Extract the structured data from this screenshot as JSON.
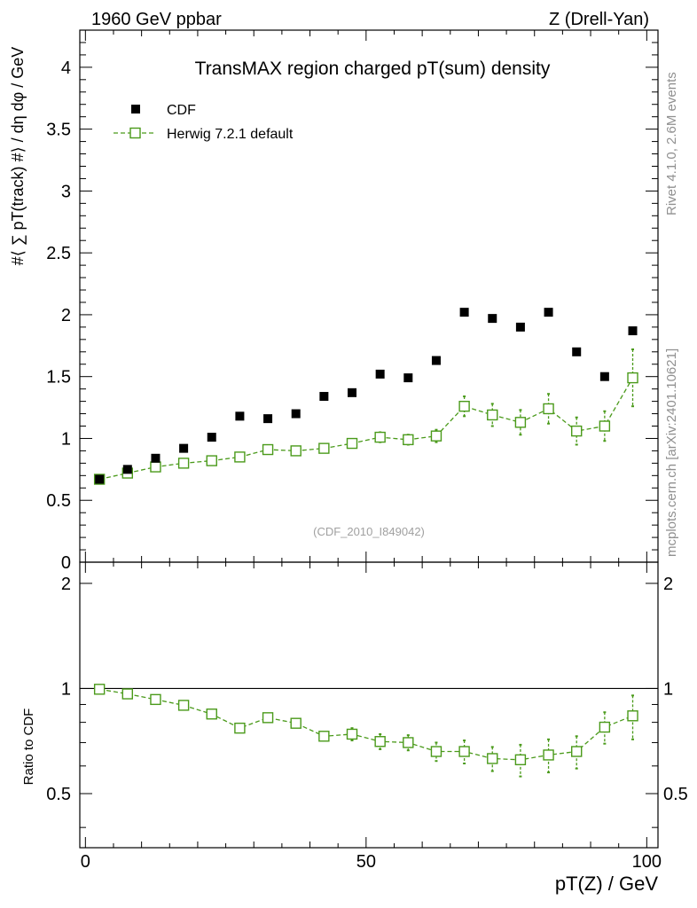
{
  "header": {
    "left": "1960 GeV ppbar",
    "right": "Z (Drell-Yan)"
  },
  "side_labels": {
    "rivet": "Rivet 4.1.0,  2.6M events",
    "mcplots": "mcplots.cern.ch [arXiv:2401.10621]"
  },
  "colors": {
    "cdf": "#000000",
    "herwig": "#4a9a1a",
    "watermark": "#a0a0a0",
    "side_text": "#909090"
  },
  "chart_data": [
    {
      "type": "scatter",
      "title": "TransMAX region charged pT(sum) density",
      "xlabel": "pT(Z) / GeV",
      "ylabel": "#⟨ ∑ pT(track) #⟩ / dη dφ / GeV",
      "xlim": [
        -1,
        102
      ],
      "ylim": [
        0,
        4.3
      ],
      "yticks": [
        0,
        0.5,
        1,
        1.5,
        2,
        2.5,
        3,
        3.5,
        4
      ],
      "ytick_labels": [
        "0",
        "0.5",
        "1",
        "1.5",
        "2",
        "2.5",
        "3",
        "3.5",
        "4"
      ],
      "watermark": "(CDF_2010_I849042)",
      "legend_position": "top-left",
      "x": [
        2.5,
        7.5,
        12.5,
        17.5,
        22.5,
        27.5,
        32.5,
        37.5,
        42.5,
        47.5,
        52.5,
        57.5,
        62.5,
        67.5,
        72.5,
        77.5,
        82.5,
        87.5,
        92.5,
        97.5
      ],
      "series": [
        {
          "name": "CDF",
          "marker": "filled-square",
          "values": [
            0.67,
            0.75,
            0.84,
            0.92,
            1.01,
            1.18,
            1.16,
            1.2,
            1.34,
            1.37,
            1.52,
            1.49,
            1.63,
            2.02,
            1.97,
            1.9,
            2.02,
            1.7,
            1.5,
            1.87
          ]
        },
        {
          "name": "Herwig 7.2.1 default",
          "marker": "open-square-dashed",
          "values": [
            0.67,
            0.72,
            0.77,
            0.8,
            0.82,
            0.85,
            0.91,
            0.9,
            0.92,
            0.96,
            1.01,
            0.99,
            1.02,
            1.26,
            1.19,
            1.13,
            1.24,
            1.06,
            1.1,
            1.49
          ],
          "errors": [
            0.01,
            0.01,
            0.01,
            0.02,
            0.02,
            0.02,
            0.02,
            0.02,
            0.02,
            0.03,
            0.04,
            0.04,
            0.05,
            0.08,
            0.09,
            0.1,
            0.12,
            0.11,
            0.12,
            0.23
          ]
        }
      ]
    },
    {
      "type": "scatter",
      "xlabel": "pT(Z) / GeV",
      "ylabel": "Ratio to CDF",
      "xlim": [
        -1,
        102
      ],
      "ylim": [
        0.35,
        2.3
      ],
      "yticks": [
        0.5,
        1,
        2
      ],
      "ytick_labels": [
        "0.5",
        "1",
        "2"
      ],
      "xticks": [
        0,
        50,
        100
      ],
      "xtick_labels": [
        "0",
        "50",
        "100"
      ],
      "reference_line": 1,
      "x": [
        2.5,
        7.5,
        12.5,
        17.5,
        22.5,
        27.5,
        32.5,
        37.5,
        42.5,
        47.5,
        52.5,
        57.5,
        62.5,
        67.5,
        72.5,
        77.5,
        82.5,
        87.5,
        92.5,
        97.5
      ],
      "series": [
        {
          "name": "Herwig 7.2.1 default / CDF",
          "values": [
            0.995,
            0.965,
            0.93,
            0.895,
            0.845,
            0.77,
            0.825,
            0.795,
            0.73,
            0.74,
            0.705,
            0.7,
            0.66,
            0.66,
            0.63,
            0.625,
            0.645,
            0.66,
            0.775,
            0.835
          ],
          "errors": [
            0.01,
            0.01,
            0.015,
            0.015,
            0.015,
            0.015,
            0.02,
            0.02,
            0.02,
            0.03,
            0.035,
            0.035,
            0.04,
            0.05,
            0.05,
            0.065,
            0.07,
            0.07,
            0.08,
            0.12
          ]
        }
      ]
    }
  ]
}
